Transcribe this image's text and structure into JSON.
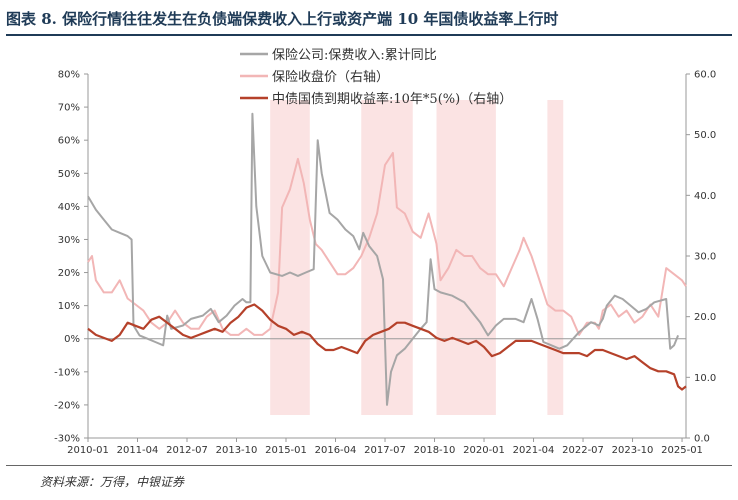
{
  "title": "图表 8. 保险行情往往发生在负债端保费收入上行或资产端 10 年国债收益率上行时",
  "source": "资料来源：万得，中银证券",
  "chart_data": {
    "type": "line",
    "x_ticks": [
      "2010-01",
      "2011-04",
      "2012-07",
      "2013-10",
      "2015-01",
      "2016-04",
      "2017-07",
      "2018-10",
      "2020-01",
      "2021-04",
      "2022-07",
      "2023-10",
      "2025-01"
    ],
    "x_range": [
      2010.0,
      2025.1
    ],
    "left_axis": {
      "min": -30,
      "max": 80,
      "ticks": [
        "-30%",
        "-20%",
        "-10%",
        "0%",
        "10%",
        "20%",
        "30%",
        "40%",
        "50%",
        "60%",
        "70%",
        "80%"
      ]
    },
    "right_axis": {
      "min": 0,
      "max": 60,
      "ticks": [
        "0.0",
        "10.0",
        "20.0",
        "30.0",
        "40.0",
        "50.0",
        "60.0"
      ]
    },
    "colors": {
      "premium": "#a6a6a6",
      "index": "#f2b6b6",
      "bond": "#b5412a",
      "shade": "#fbe3e3",
      "axis": "#999999"
    },
    "shaded_periods": [
      [
        2014.6,
        2015.6
      ],
      [
        2016.9,
        2018.2
      ],
      [
        2018.8,
        2020.3
      ],
      [
        2021.6,
        2022.0
      ]
    ],
    "series": [
      {
        "name": "保险公司:保费收入:累计同比",
        "axis": "left",
        "color_key": "premium",
        "points": [
          [
            2010.0,
            43
          ],
          [
            2010.2,
            39
          ],
          [
            2010.4,
            36
          ],
          [
            2010.6,
            33
          ],
          [
            2010.8,
            32
          ],
          [
            2011.0,
            31
          ],
          [
            2011.1,
            30
          ],
          [
            2011.15,
            4
          ],
          [
            2011.3,
            1
          ],
          [
            2011.5,
            0
          ],
          [
            2011.7,
            -1
          ],
          [
            2011.9,
            -2
          ],
          [
            2012.0,
            7
          ],
          [
            2012.1,
            3
          ],
          [
            2012.4,
            4
          ],
          [
            2012.6,
            6
          ],
          [
            2012.9,
            7
          ],
          [
            2013.1,
            9
          ],
          [
            2013.3,
            5
          ],
          [
            2013.5,
            7
          ],
          [
            2013.7,
            10
          ],
          [
            2013.9,
            12
          ],
          [
            2014.0,
            11
          ],
          [
            2014.1,
            11
          ],
          [
            2014.15,
            68
          ],
          [
            2014.25,
            40
          ],
          [
            2014.4,
            25
          ],
          [
            2014.6,
            20
          ],
          [
            2014.9,
            19
          ],
          [
            2015.1,
            20
          ],
          [
            2015.3,
            19
          ],
          [
            2015.5,
            20
          ],
          [
            2015.7,
            21
          ],
          [
            2015.8,
            60
          ],
          [
            2015.9,
            50
          ],
          [
            2016.1,
            38
          ],
          [
            2016.3,
            36
          ],
          [
            2016.5,
            33
          ],
          [
            2016.7,
            31
          ],
          [
            2016.85,
            27
          ],
          [
            2016.95,
            32
          ],
          [
            2017.1,
            28
          ],
          [
            2017.3,
            25
          ],
          [
            2017.45,
            18
          ],
          [
            2017.55,
            -20
          ],
          [
            2017.65,
            -10
          ],
          [
            2017.8,
            -5
          ],
          [
            2018.0,
            -3
          ],
          [
            2018.2,
            0
          ],
          [
            2018.4,
            3
          ],
          [
            2018.55,
            5
          ],
          [
            2018.65,
            24
          ],
          [
            2018.75,
            15
          ],
          [
            2018.9,
            14
          ],
          [
            2019.2,
            13
          ],
          [
            2019.5,
            11
          ],
          [
            2019.7,
            8
          ],
          [
            2019.9,
            5
          ],
          [
            2020.1,
            1
          ],
          [
            2020.3,
            4
          ],
          [
            2020.5,
            6
          ],
          [
            2020.8,
            6
          ],
          [
            2021.0,
            5
          ],
          [
            2021.2,
            12
          ],
          [
            2021.35,
            6
          ],
          [
            2021.5,
            -1
          ],
          [
            2021.7,
            -2
          ],
          [
            2021.9,
            -3
          ],
          [
            2022.1,
            -2
          ],
          [
            2022.4,
            2
          ],
          [
            2022.7,
            5
          ],
          [
            2022.9,
            4
          ],
          [
            2023.0,
            6
          ],
          [
            2023.1,
            10
          ],
          [
            2023.3,
            13
          ],
          [
            2023.5,
            12
          ],
          [
            2023.7,
            10
          ],
          [
            2023.9,
            8
          ],
          [
            2024.1,
            9
          ],
          [
            2024.3,
            11
          ],
          [
            2024.6,
            12
          ],
          [
            2024.7,
            -3
          ],
          [
            2024.8,
            -2
          ],
          [
            2024.9,
            1
          ]
        ]
      },
      {
        "name": "保险收盘价（右轴）",
        "axis": "right",
        "color_key": "index",
        "points": [
          [
            2010.0,
            29
          ],
          [
            2010.1,
            30
          ],
          [
            2010.2,
            26
          ],
          [
            2010.4,
            24
          ],
          [
            2010.6,
            24
          ],
          [
            2010.8,
            26
          ],
          [
            2011.0,
            23
          ],
          [
            2011.2,
            22
          ],
          [
            2011.4,
            21
          ],
          [
            2011.6,
            19
          ],
          [
            2011.8,
            18
          ],
          [
            2012.0,
            19
          ],
          [
            2012.2,
            21
          ],
          [
            2012.4,
            19
          ],
          [
            2012.6,
            18
          ],
          [
            2012.8,
            18
          ],
          [
            2013.0,
            20
          ],
          [
            2013.2,
            21
          ],
          [
            2013.4,
            18
          ],
          [
            2013.6,
            17
          ],
          [
            2013.8,
            17
          ],
          [
            2014.0,
            18
          ],
          [
            2014.2,
            17
          ],
          [
            2014.4,
            17
          ],
          [
            2014.6,
            18
          ],
          [
            2014.8,
            24
          ],
          [
            2014.9,
            38
          ],
          [
            2015.1,
            41
          ],
          [
            2015.3,
            46
          ],
          [
            2015.45,
            42
          ],
          [
            2015.6,
            36
          ],
          [
            2015.75,
            32
          ],
          [
            2015.9,
            31
          ],
          [
            2016.1,
            29
          ],
          [
            2016.3,
            27
          ],
          [
            2016.5,
            27
          ],
          [
            2016.7,
            28
          ],
          [
            2016.9,
            30
          ],
          [
            2017.1,
            33
          ],
          [
            2017.3,
            37
          ],
          [
            2017.5,
            45
          ],
          [
            2017.7,
            47
          ],
          [
            2017.8,
            38
          ],
          [
            2018.0,
            37
          ],
          [
            2018.2,
            34
          ],
          [
            2018.4,
            33
          ],
          [
            2018.6,
            37
          ],
          [
            2018.8,
            32
          ],
          [
            2018.9,
            26
          ],
          [
            2019.1,
            28
          ],
          [
            2019.3,
            31
          ],
          [
            2019.5,
            30
          ],
          [
            2019.7,
            30
          ],
          [
            2019.9,
            28
          ],
          [
            2020.1,
            27
          ],
          [
            2020.3,
            27
          ],
          [
            2020.5,
            25
          ],
          [
            2020.7,
            28
          ],
          [
            2020.9,
            31
          ],
          [
            2021.0,
            33
          ],
          [
            2021.2,
            30
          ],
          [
            2021.4,
            26
          ],
          [
            2021.6,
            22
          ],
          [
            2021.8,
            21
          ],
          [
            2022.0,
            21
          ],
          [
            2022.2,
            20
          ],
          [
            2022.4,
            17
          ],
          [
            2022.6,
            19
          ],
          [
            2022.8,
            19
          ],
          [
            2022.9,
            18
          ],
          [
            2023.0,
            21
          ],
          [
            2023.2,
            22
          ],
          [
            2023.4,
            20
          ],
          [
            2023.6,
            21
          ],
          [
            2023.8,
            19
          ],
          [
            2024.0,
            20
          ],
          [
            2024.2,
            22
          ],
          [
            2024.4,
            20
          ],
          [
            2024.6,
            28
          ],
          [
            2024.8,
            27
          ],
          [
            2025.0,
            26
          ],
          [
            2025.1,
            25
          ]
        ]
      },
      {
        "name": "中债国债到期收益率:10年*5(%)（右轴）",
        "axis": "right",
        "color_key": "bond",
        "points": [
          [
            2010.0,
            18
          ],
          [
            2010.2,
            17
          ],
          [
            2010.4,
            16.5
          ],
          [
            2010.6,
            16
          ],
          [
            2010.8,
            17
          ],
          [
            2011.0,
            19
          ],
          [
            2011.2,
            18.5
          ],
          [
            2011.4,
            18
          ],
          [
            2011.6,
            19.5
          ],
          [
            2011.8,
            20
          ],
          [
            2012.0,
            19
          ],
          [
            2012.2,
            18
          ],
          [
            2012.4,
            17
          ],
          [
            2012.6,
            16.5
          ],
          [
            2012.8,
            17
          ],
          [
            2013.0,
            17.5
          ],
          [
            2013.2,
            18
          ],
          [
            2013.4,
            17.5
          ],
          [
            2013.6,
            19
          ],
          [
            2013.8,
            20
          ],
          [
            2014.0,
            21.5
          ],
          [
            2014.2,
            22
          ],
          [
            2014.4,
            21
          ],
          [
            2014.6,
            19.5
          ],
          [
            2014.8,
            18.5
          ],
          [
            2015.0,
            18
          ],
          [
            2015.2,
            17
          ],
          [
            2015.4,
            17.5
          ],
          [
            2015.6,
            17
          ],
          [
            2015.8,
            15.5
          ],
          [
            2016.0,
            14.5
          ],
          [
            2016.2,
            14.5
          ],
          [
            2016.4,
            15
          ],
          [
            2016.6,
            14.5
          ],
          [
            2016.8,
            14
          ],
          [
            2017.0,
            16
          ],
          [
            2017.2,
            17
          ],
          [
            2017.4,
            17.5
          ],
          [
            2017.6,
            18
          ],
          [
            2017.8,
            19
          ],
          [
            2018.0,
            19
          ],
          [
            2018.2,
            18.5
          ],
          [
            2018.4,
            18
          ],
          [
            2018.6,
            17.5
          ],
          [
            2018.8,
            16.5
          ],
          [
            2019.0,
            16
          ],
          [
            2019.2,
            16.5
          ],
          [
            2019.4,
            16
          ],
          [
            2019.6,
            15.5
          ],
          [
            2019.8,
            16
          ],
          [
            2020.0,
            15
          ],
          [
            2020.2,
            13.5
          ],
          [
            2020.4,
            14
          ],
          [
            2020.6,
            15
          ],
          [
            2020.8,
            16
          ],
          [
            2021.0,
            16
          ],
          [
            2021.2,
            16
          ],
          [
            2021.4,
            15.5
          ],
          [
            2021.6,
            15
          ],
          [
            2021.8,
            14.5
          ],
          [
            2022.0,
            14
          ],
          [
            2022.2,
            14
          ],
          [
            2022.4,
            14
          ],
          [
            2022.6,
            13.5
          ],
          [
            2022.8,
            14.5
          ],
          [
            2023.0,
            14.5
          ],
          [
            2023.2,
            14
          ],
          [
            2023.4,
            13.5
          ],
          [
            2023.6,
            13
          ],
          [
            2023.8,
            13.5
          ],
          [
            2024.0,
            12.5
          ],
          [
            2024.2,
            11.5
          ],
          [
            2024.4,
            11
          ],
          [
            2024.6,
            11
          ],
          [
            2024.8,
            10.5
          ],
          [
            2024.9,
            8.5
          ],
          [
            2025.0,
            8
          ],
          [
            2025.1,
            8.5
          ]
        ]
      }
    ]
  }
}
